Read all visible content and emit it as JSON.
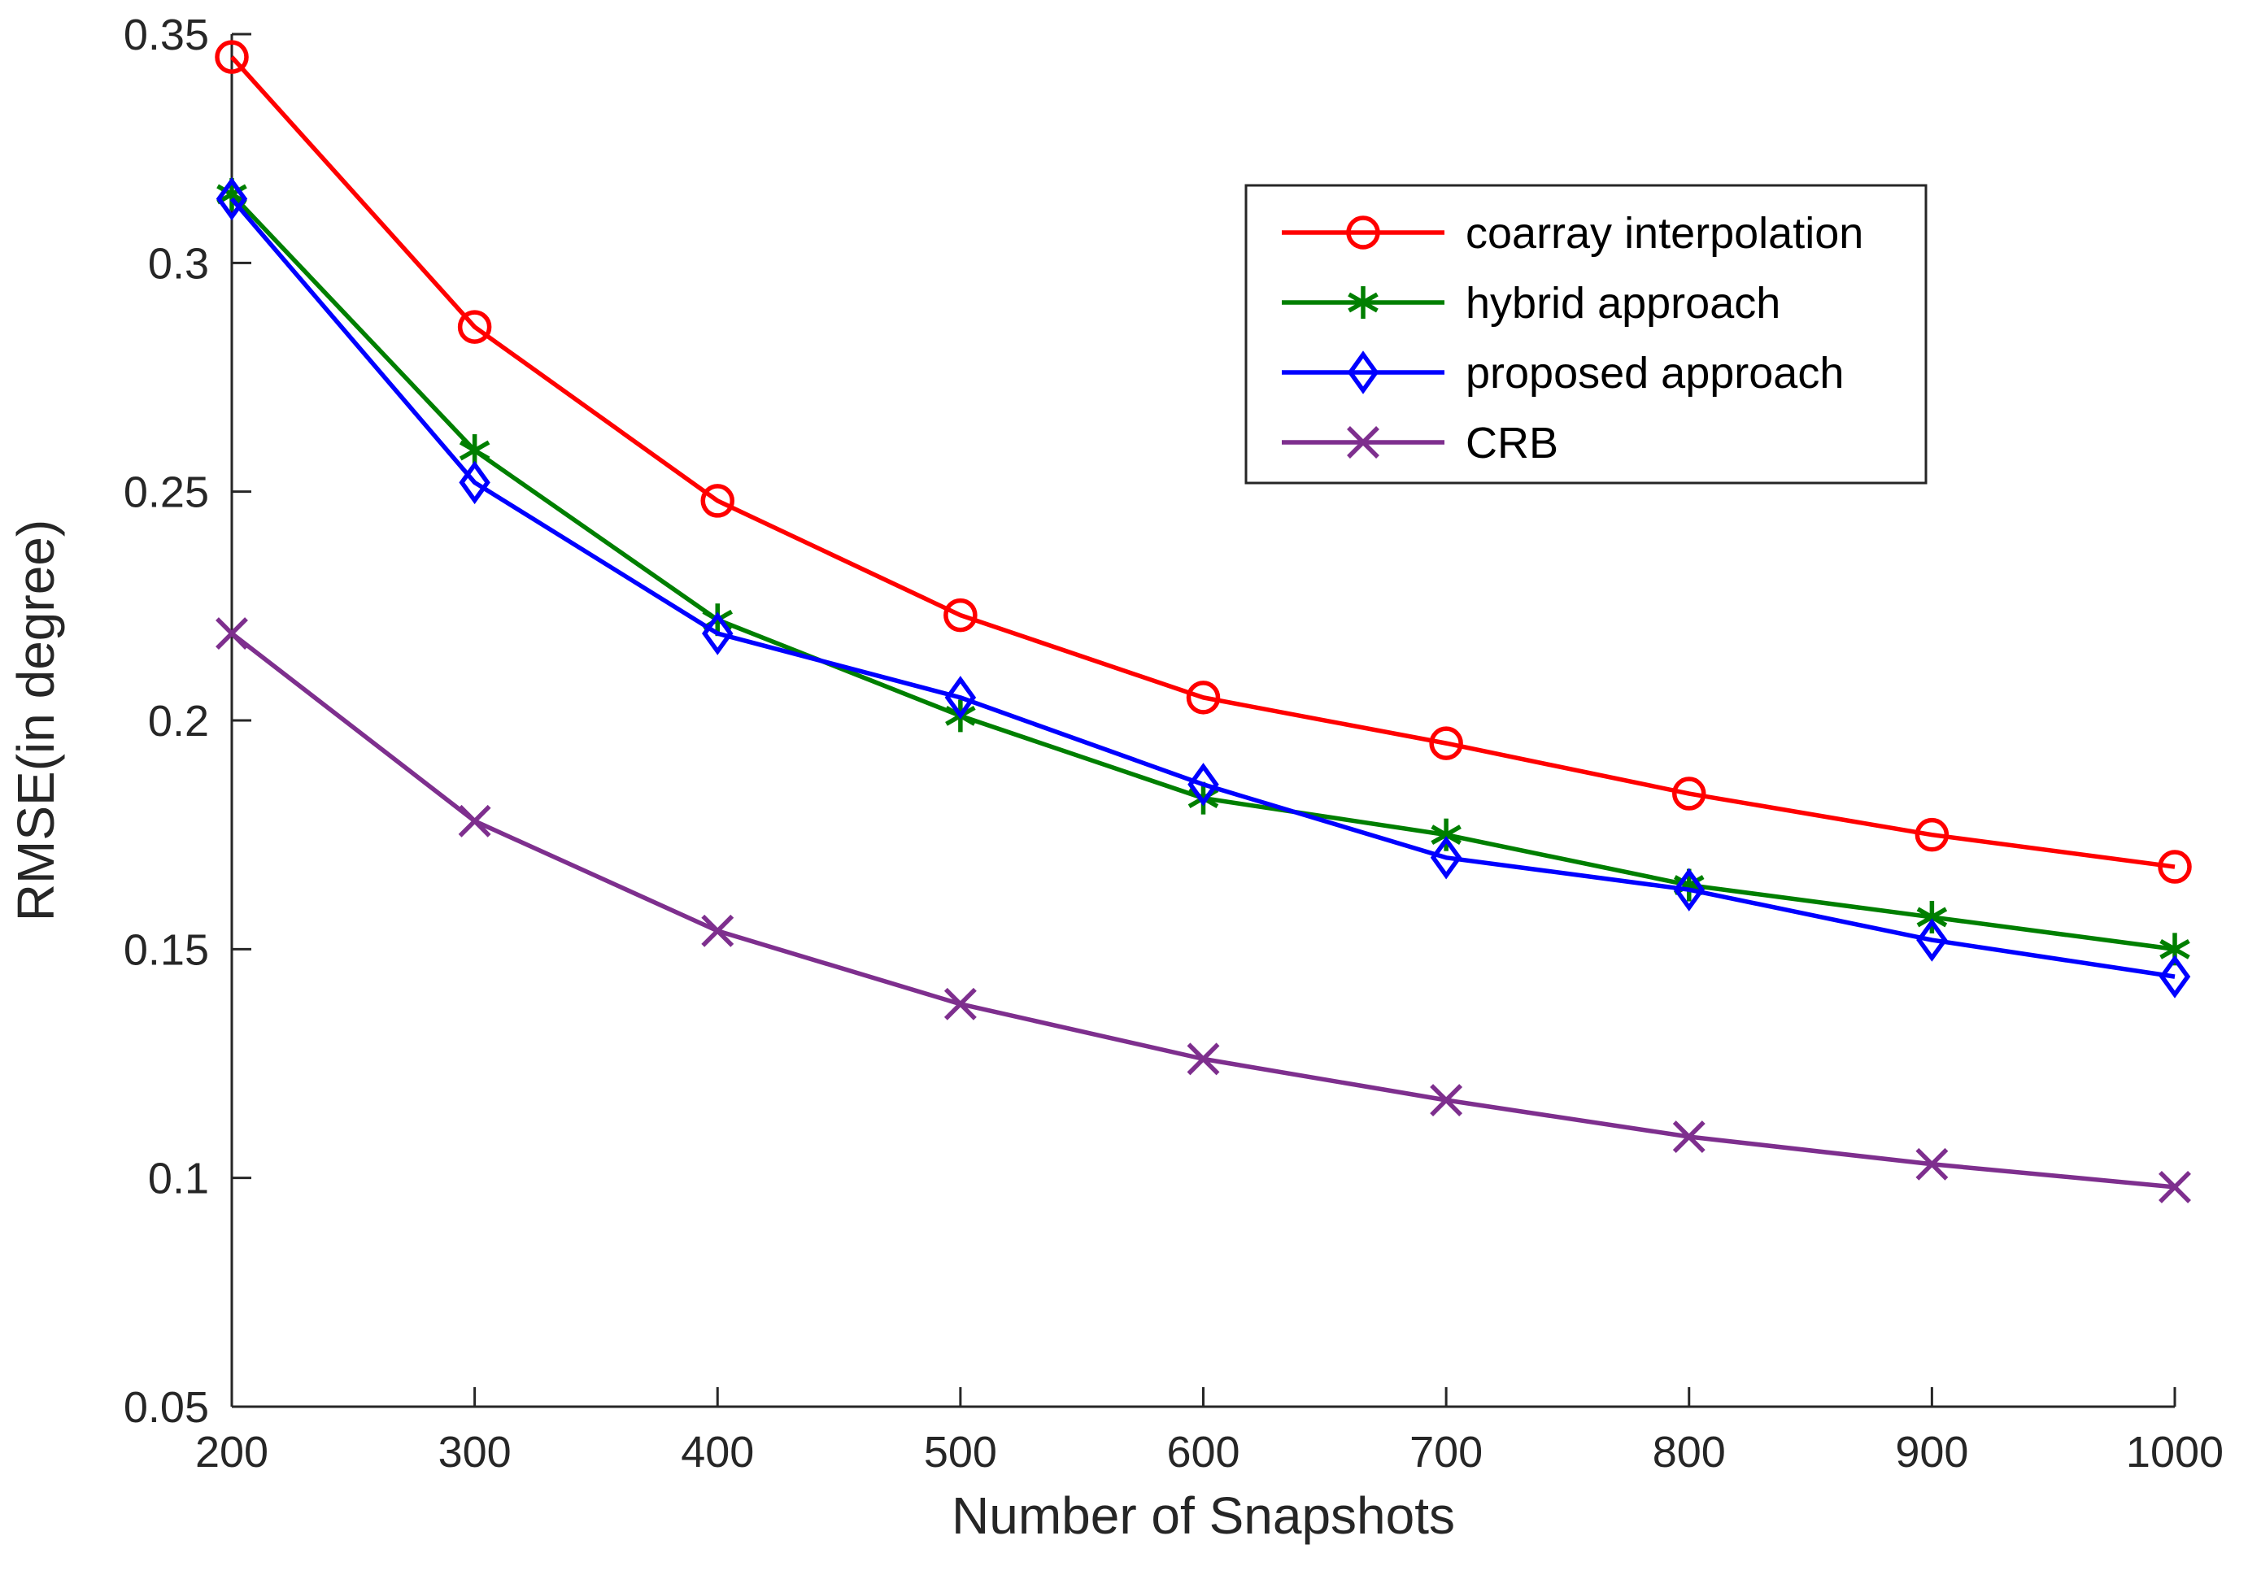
{
  "chart_data": {
    "type": "line",
    "title": "",
    "xlabel": "Number of Snapshots",
    "ylabel": "RMSE(in degree)",
    "x": [
      200,
      300,
      400,
      500,
      600,
      700,
      800,
      900,
      1000
    ],
    "xlim": [
      200,
      1000
    ],
    "ylim": [
      0.05,
      0.35
    ],
    "xticks": [
      200,
      300,
      400,
      500,
      600,
      700,
      800,
      900,
      1000
    ],
    "xtick_labels": [
      "200",
      "300",
      "400",
      "500",
      "600",
      "700",
      "800",
      "900",
      "1000"
    ],
    "yticks": [
      0.05,
      0.1,
      0.15,
      0.2,
      0.25,
      0.3,
      0.35
    ],
    "ytick_labels": [
      "0.05",
      "0.1",
      "0.15",
      "0.2",
      "0.25",
      "0.3",
      "0.35"
    ],
    "grid": false,
    "legend_position": "top-right",
    "series": [
      {
        "name": "coarray interpolation",
        "color": "#ff0000",
        "marker": "circle",
        "values": [
          0.345,
          0.286,
          0.248,
          0.223,
          0.205,
          0.195,
          0.184,
          0.175,
          0.168
        ]
      },
      {
        "name": "hybrid approach",
        "color": "#007f00",
        "marker": "asterisk",
        "values": [
          0.315,
          0.259,
          0.222,
          0.201,
          0.183,
          0.175,
          0.164,
          0.157,
          0.15
        ]
      },
      {
        "name": "proposed approach",
        "color": "#0000ff",
        "marker": "diamond",
        "values": [
          0.314,
          0.252,
          0.219,
          0.205,
          0.186,
          0.17,
          0.163,
          0.152,
          0.144
        ]
      },
      {
        "name": "CRB",
        "color": "#7e2f8e",
        "marker": "x",
        "values": [
          0.219,
          0.178,
          0.154,
          0.138,
          0.126,
          0.117,
          0.109,
          0.103,
          0.098
        ]
      }
    ]
  }
}
